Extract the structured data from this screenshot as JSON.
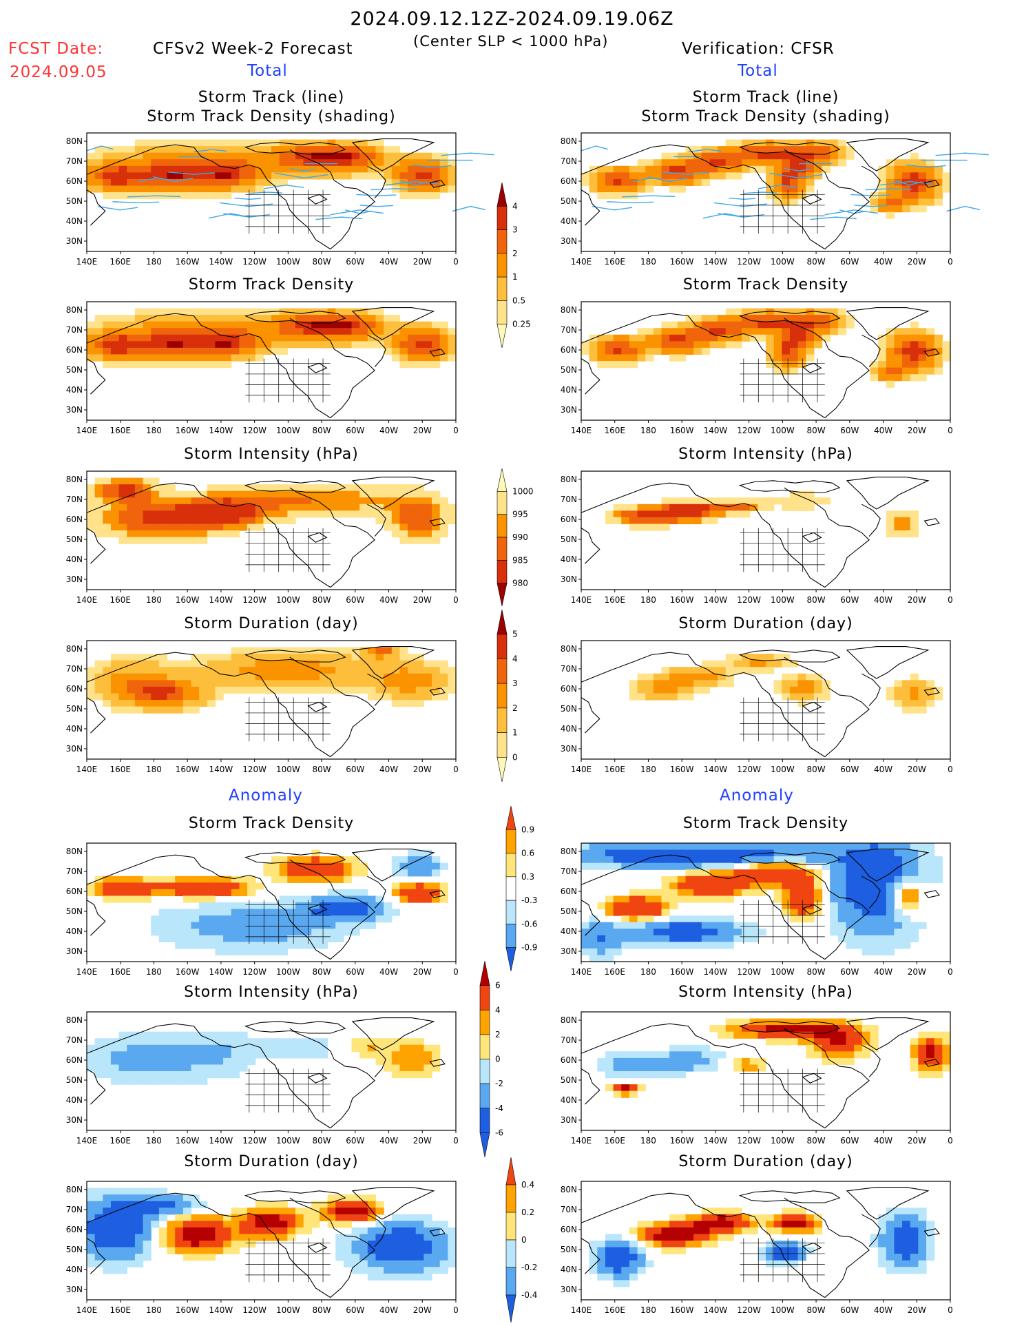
{
  "header": {
    "date_range": "2024.09.12.12Z-2024.09.19.06Z",
    "subtitle": "(Center SLP < 1000 hPa)",
    "fcst_label": "FCST Date:",
    "fcst_date": "2024.09.05",
    "left_title": "CFSv2 Week-2 Forecast",
    "right_title": "Verification: CFSR",
    "total_label": "Total",
    "anomaly_label": "Anomaly"
  },
  "colors": {
    "t1": "#fff9b8",
    "t2": "#ffe28a",
    "t3": "#fdbe3c",
    "t4": "#fb9300",
    "t5": "#f0640c",
    "t6": "#d8300a",
    "t7": "#9d0000",
    "a_neg3": "#1d5fe0",
    "a_neg2": "#5aa8f0",
    "a_neg1": "#b9e6fb",
    "a_pos1": "#ffe57a",
    "a_pos2": "#ffa300",
    "a_pos3": "#f04511",
    "a_pos4": "#b40000",
    "track": "#3fa9e8",
    "coast": "#000000"
  },
  "icons": {
    "colorbar_arrow": "triangle-end"
  },
  "chart_data": {
    "type": "heatmap",
    "lon_labels": [
      "140E",
      "160E",
      "180",
      "160W",
      "140W",
      "120W",
      "100W",
      "80W",
      "60W",
      "40W",
      "20W",
      "0"
    ],
    "lat_labels": [
      "80N",
      "70N",
      "60N",
      "50N",
      "40N",
      "30N"
    ],
    "panels": [
      {
        "title": [
          "Storm Track (line)",
          "Storm Track Density (shading)"
        ],
        "column": "CFSv2 Week-2 Forecast",
        "section": "Total",
        "scale": "density",
        "tracks": true
      },
      {
        "title": [
          "Storm Track (line)",
          "Storm Track Density (shading)"
        ],
        "column": "Verification: CFSR",
        "section": "Total",
        "scale": "density",
        "tracks": true
      },
      {
        "title": [
          "Storm Track Density"
        ],
        "column": "CFSv2 Week-2 Forecast",
        "section": "Total",
        "scale": "density"
      },
      {
        "title": [
          "Storm Track Density"
        ],
        "column": "Verification: CFSR",
        "section": "Total",
        "scale": "density"
      },
      {
        "title": [
          "Storm Intensity (hPa)"
        ],
        "column": "CFSv2 Week-2 Forecast",
        "section": "Total",
        "scale": "intensity"
      },
      {
        "title": [
          "Storm Intensity (hPa)"
        ],
        "column": "Verification: CFSR",
        "section": "Total",
        "scale": "intensity"
      },
      {
        "title": [
          "Storm Duration (day)"
        ],
        "column": "CFSv2 Week-2 Forecast",
        "section": "Total",
        "scale": "duration"
      },
      {
        "title": [
          "Storm Duration (day)"
        ],
        "column": "Verification: CFSR",
        "section": "Total",
        "scale": "duration"
      },
      {
        "title": [
          "Storm Track Density"
        ],
        "column": "CFSv2 Week-2 Forecast",
        "section": "Anomaly",
        "scale": "density_anom"
      },
      {
        "title": [
          "Storm Track Density"
        ],
        "column": "Verification: CFSR",
        "section": "Anomaly",
        "scale": "density_anom"
      },
      {
        "title": [
          "Storm Intensity (hPa)"
        ],
        "column": "CFSv2 Week-2 Forecast",
        "section": "Anomaly",
        "scale": "intensity_anom"
      },
      {
        "title": [
          "Storm Intensity (hPa)"
        ],
        "column": "Verification: CFSR",
        "section": "Anomaly",
        "scale": "intensity_anom"
      },
      {
        "title": [
          "Storm Duration (day)"
        ],
        "column": "CFSv2 Week-2 Forecast",
        "section": "Anomaly",
        "scale": "duration_anom"
      },
      {
        "title": [
          "Storm Duration (day)"
        ],
        "column": "Verification: CFSR",
        "section": "Anomaly",
        "scale": "duration_anom"
      }
    ],
    "colorbars": [
      {
        "scale": "density",
        "labels": [
          "4",
          "3",
          "2",
          "1",
          "0.5",
          "0.25"
        ]
      },
      {
        "scale": "intensity",
        "labels": [
          "1000",
          "995",
          "990",
          "985",
          "980"
        ]
      },
      {
        "scale": "duration",
        "labels": [
          "5",
          "4",
          "3",
          "2",
          "1",
          "0"
        ]
      },
      {
        "scale": "density_anom",
        "labels": [
          "0.9",
          "0.6",
          "0.3",
          "-0.3",
          "-0.6",
          "-0.9"
        ]
      },
      {
        "scale": "intensity_anom",
        "labels": [
          "6",
          "4",
          "2",
          "0",
          "-2",
          "-4",
          "-6"
        ]
      },
      {
        "scale": "duration_anom",
        "labels": [
          "0.4",
          "0.2",
          "0",
          "-0.2",
          "-0.4"
        ]
      }
    ]
  }
}
